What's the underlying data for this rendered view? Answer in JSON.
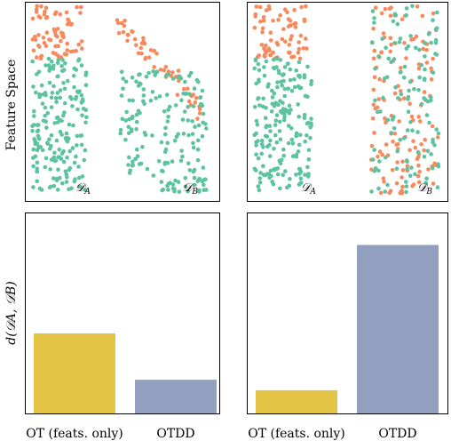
{
  "figure": {
    "top_ylabel": "Feature Space",
    "bottom_ylabel": "d(𝒟",
    "bottom_ylabel_full": "d(𝒟A, 𝒟B)"
  },
  "colors": {
    "class_a": "#5cc2a0",
    "class_b": "#f68a5c",
    "bar_ot": "#e3c444",
    "bar_otdd": "#929fbf"
  },
  "chart_data": [
    {
      "type": "scatter",
      "panel": "top-left",
      "description_labels": [
        "𝒟A",
        "𝒟B"
      ],
      "dataset_labels": [
        {
          "name": "𝒟",
          "sub": "A"
        },
        {
          "name": "𝒟",
          "sub": "B"
        }
      ],
      "ylabel": "Feature Space",
      "xlim": [
        0,
        10
      ],
      "ylim": [
        0,
        10
      ],
      "clusters": [
        {
          "label": "A-top",
          "color": "class_b",
          "x": [
            0.3,
            3.0
          ],
          "y": [
            7.2,
            9.9
          ],
          "n": 70
        },
        {
          "label": "A-bottom",
          "color": "class_a",
          "x": [
            0.3,
            3.2
          ],
          "y": [
            0.5,
            7.2
          ],
          "n": 190
        },
        {
          "label": "B-top",
          "color": "class_b",
          "shape": "arc-top-right",
          "n": 55
        },
        {
          "label": "B-bottom",
          "color": "class_a",
          "shape": "arc-body",
          "n": 170
        }
      ]
    },
    {
      "type": "scatter",
      "panel": "top-right",
      "dataset_labels": [
        {
          "name": "𝒟",
          "sub": "A"
        },
        {
          "name": "𝒟",
          "sub": "B"
        }
      ],
      "xlim": [
        0,
        10
      ],
      "ylim": [
        0,
        10
      ],
      "clusters": [
        {
          "label": "A-top",
          "color": "class_b",
          "x": [
            0.3,
            3.0
          ],
          "y": [
            7.2,
            9.9
          ],
          "n": 70
        },
        {
          "label": "A-bottom",
          "color": "class_a",
          "x": [
            0.3,
            3.2
          ],
          "y": [
            0.5,
            7.2
          ],
          "n": 190
        },
        {
          "label": "B-mixed-orange",
          "color": "class_b",
          "x": [
            6.2,
            9.6
          ],
          "y": [
            0.3,
            9.9
          ],
          "n": 130
        },
        {
          "label": "B-mixed-green",
          "color": "class_a",
          "x": [
            6.2,
            9.6
          ],
          "y": [
            0.3,
            9.9
          ],
          "n": 120
        }
      ]
    },
    {
      "type": "bar",
      "panel": "bottom-left",
      "categories": [
        "OT (feats. only)",
        "OTDD"
      ],
      "values": [
        0.38,
        0.16
      ],
      "ylim": [
        0,
        0.95
      ],
      "ylabel": "d(𝒟A, 𝒟B)"
    },
    {
      "type": "bar",
      "panel": "bottom-right",
      "categories": [
        "OT (feats. only)",
        "OTDD"
      ],
      "values": [
        0.11,
        0.8
      ],
      "ylim": [
        0,
        0.95
      ]
    }
  ]
}
